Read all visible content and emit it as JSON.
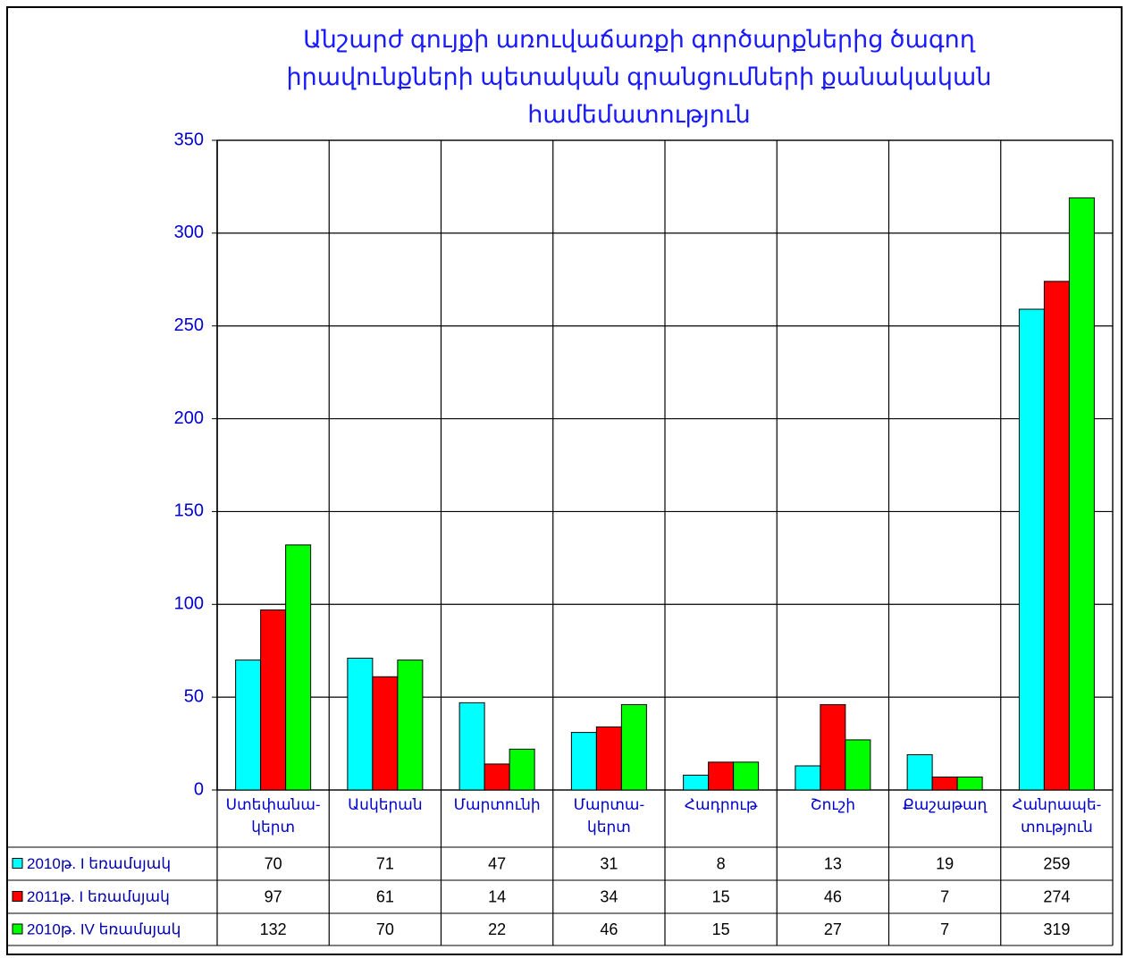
{
  "chart_data": {
    "type": "bar",
    "title": [
      "Անշարժ գույքի առուվաճառքի գործարքներից ծագող",
      "իրավունքների պետական գրանցումների քանակական",
      "համեմատություն"
    ],
    "categories": [
      "Ստեփանա-\nկերտ",
      "Ասկերան",
      "Մարտունի",
      "Մարտա-\nկերտ",
      "Հադրութ",
      "Շուշի",
      "Քաշաթաղ",
      "Հանրապե-\nտություն"
    ],
    "series": [
      {
        "name": "2010թ. I եռամսյակ",
        "color": "#00ffff",
        "values": [
          70,
          71,
          47,
          31,
          8,
          13,
          19,
          259
        ]
      },
      {
        "name": "2011թ. I եռամսյակ",
        "color": "#ff0000",
        "values": [
          97,
          61,
          14,
          34,
          15,
          46,
          7,
          274
        ]
      },
      {
        "name": "2010թ. IV եռամսյակ",
        "color": "#00ff00",
        "values": [
          132,
          70,
          22,
          46,
          15,
          27,
          7,
          319
        ]
      }
    ],
    "ylim": [
      0,
      350
    ],
    "yticks": [
      0,
      50,
      100,
      150,
      200,
      250,
      300,
      350
    ],
    "grid": true
  }
}
